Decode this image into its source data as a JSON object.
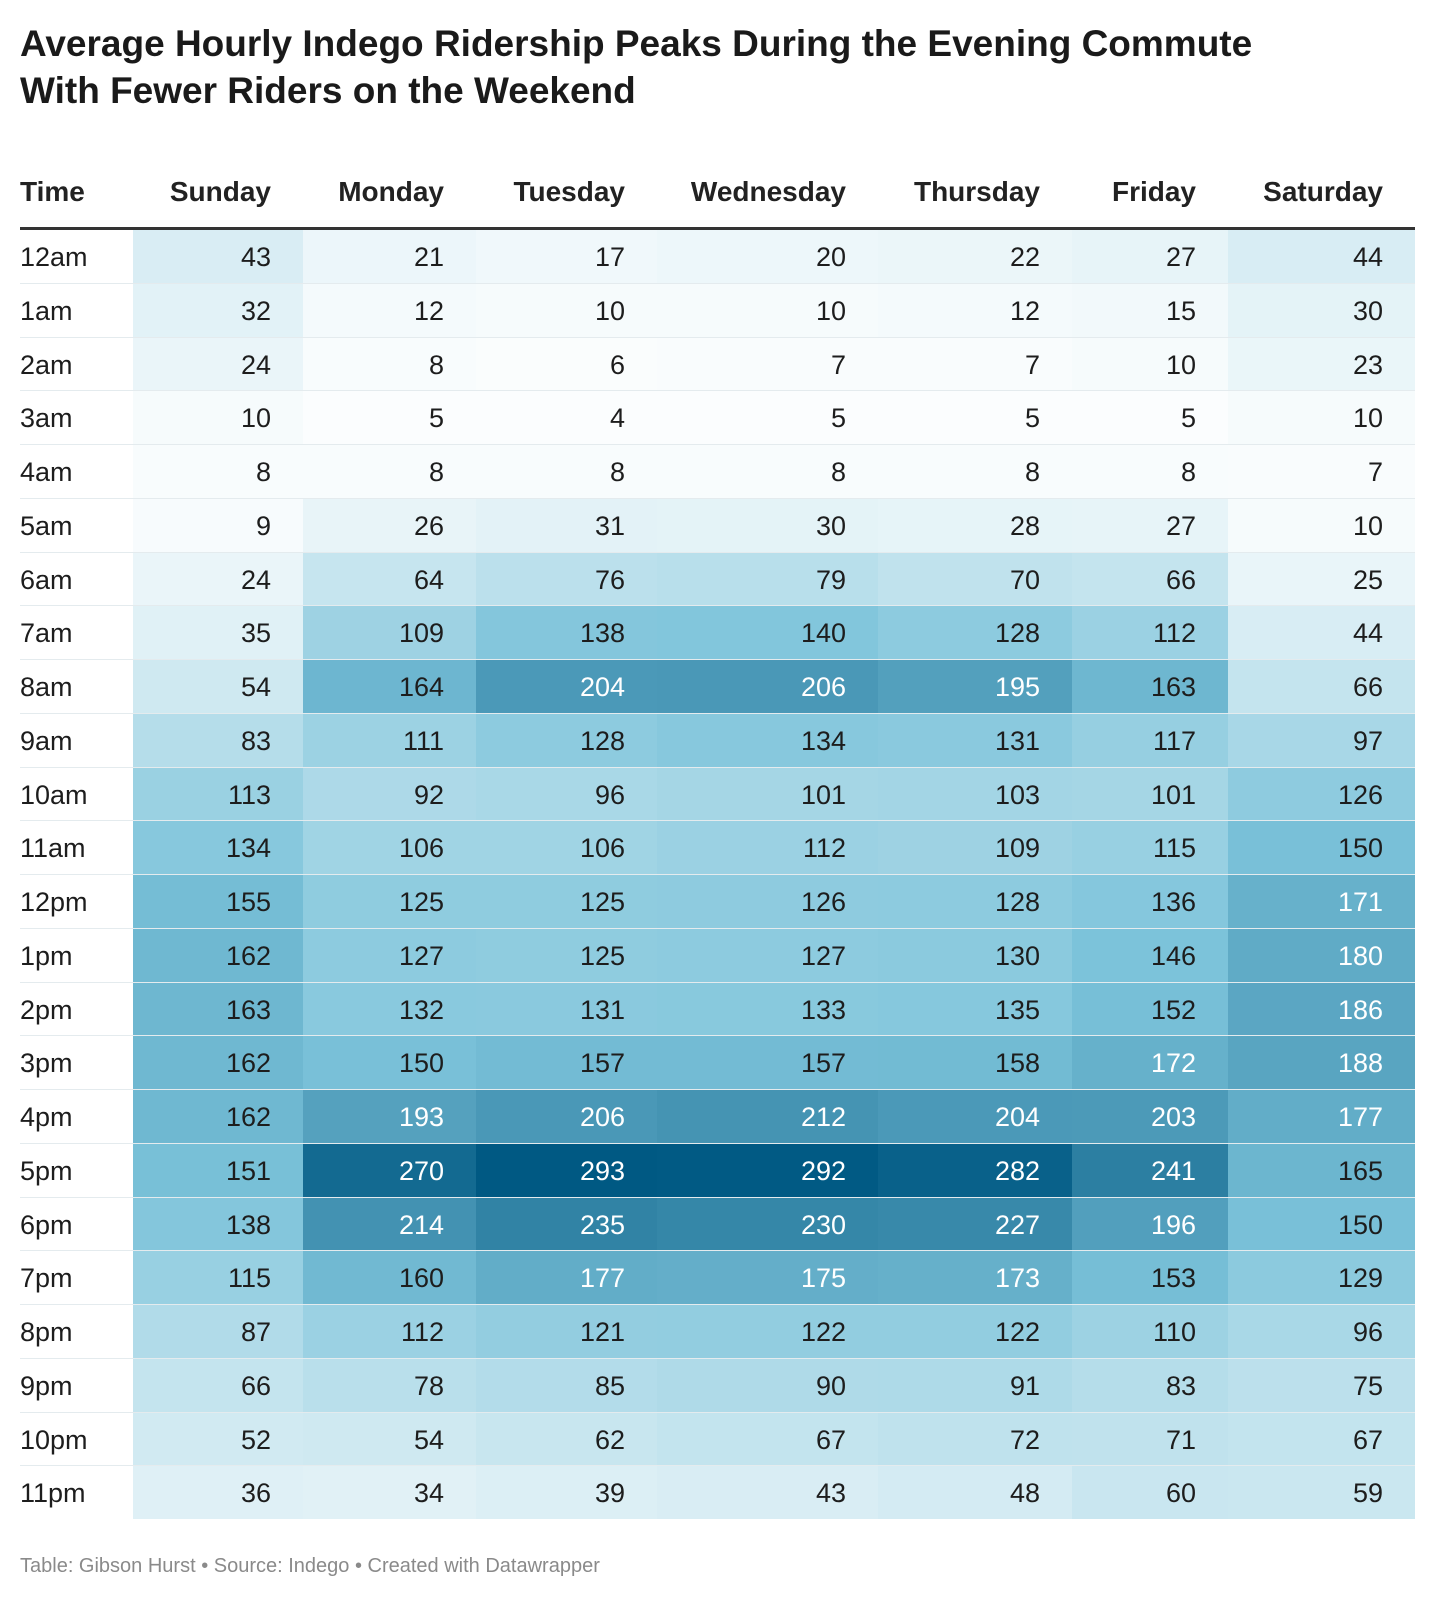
{
  "title_line1": "Average Hourly Indego Ridership Peaks During the Evening Commute",
  "title_line2": "With Fewer Riders on the Weekend",
  "footer": "Table: Gibson Hurst • Source: Indego • Created with Datawrapper",
  "chart_data": {
    "type": "table",
    "title": "Average Hourly Indego Ridership Peaks During the Evening Commute With Fewer Riders on the Weekend",
    "row_header": "Time",
    "columns": [
      "Sunday",
      "Monday",
      "Tuesday",
      "Wednesday",
      "Thursday",
      "Friday",
      "Saturday"
    ],
    "rows": [
      "12am",
      "1am",
      "2am",
      "3am",
      "4am",
      "5am",
      "6am",
      "7am",
      "8am",
      "9am",
      "10am",
      "11am",
      "12pm",
      "1pm",
      "2pm",
      "3pm",
      "4pm",
      "5pm",
      "6pm",
      "7pm",
      "8pm",
      "9pm",
      "10pm",
      "11pm"
    ],
    "values": [
      [
        43,
        21,
        17,
        20,
        22,
        27,
        44
      ],
      [
        32,
        12,
        10,
        10,
        12,
        15,
        30
      ],
      [
        24,
        8,
        6,
        7,
        7,
        10,
        23
      ],
      [
        10,
        5,
        4,
        5,
        5,
        5,
        10
      ],
      [
        8,
        8,
        8,
        8,
        8,
        8,
        7
      ],
      [
        9,
        26,
        31,
        30,
        28,
        27,
        10
      ],
      [
        24,
        64,
        76,
        79,
        70,
        66,
        25
      ],
      [
        35,
        109,
        138,
        140,
        128,
        112,
        44
      ],
      [
        54,
        164,
        204,
        206,
        195,
        163,
        66
      ],
      [
        83,
        111,
        128,
        134,
        131,
        117,
        97
      ],
      [
        113,
        92,
        96,
        101,
        103,
        101,
        126
      ],
      [
        134,
        106,
        106,
        112,
        109,
        115,
        150
      ],
      [
        155,
        125,
        125,
        126,
        128,
        136,
        171
      ],
      [
        162,
        127,
        125,
        127,
        130,
        146,
        180
      ],
      [
        163,
        132,
        131,
        133,
        135,
        152,
        186
      ],
      [
        162,
        150,
        157,
        157,
        158,
        172,
        188
      ],
      [
        162,
        193,
        206,
        212,
        204,
        203,
        177
      ],
      [
        151,
        270,
        293,
        292,
        282,
        241,
        165
      ],
      [
        138,
        214,
        235,
        230,
        227,
        196,
        150
      ],
      [
        115,
        160,
        177,
        175,
        173,
        153,
        129
      ],
      [
        87,
        112,
        121,
        122,
        122,
        110,
        96
      ],
      [
        66,
        78,
        85,
        90,
        91,
        83,
        75
      ],
      [
        52,
        54,
        62,
        67,
        72,
        71,
        67
      ],
      [
        36,
        34,
        39,
        43,
        48,
        60,
        59
      ]
    ],
    "color_scale": {
      "low": "#ffffff",
      "mid": "#7cc3da",
      "high": "#005983"
    }
  }
}
